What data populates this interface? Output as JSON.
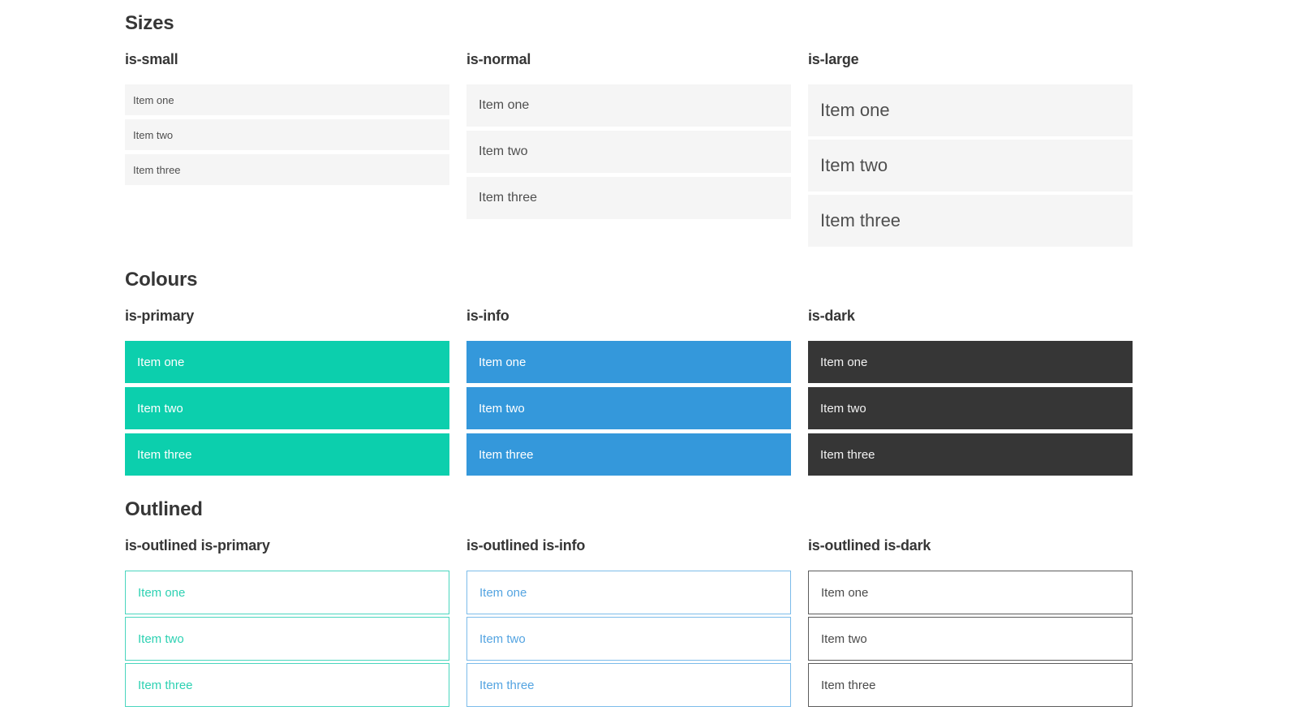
{
  "sections": [
    {
      "title": "Sizes",
      "columns": [
        {
          "label": "is-small",
          "items": [
            "Item one",
            "Item two",
            "Item three"
          ]
        },
        {
          "label": "is-normal",
          "items": [
            "Item one",
            "Item two",
            "Item three"
          ]
        },
        {
          "label": "is-large",
          "items": [
            "Item one",
            "Item two",
            "Item three"
          ]
        }
      ]
    },
    {
      "title": "Colours",
      "columns": [
        {
          "label": "is-primary",
          "items": [
            "Item one",
            "Item two",
            "Item three"
          ]
        },
        {
          "label": "is-info",
          "items": [
            "Item one",
            "Item two",
            "Item three"
          ]
        },
        {
          "label": "is-dark",
          "items": [
            "Item one",
            "Item two",
            "Item three"
          ]
        }
      ]
    },
    {
      "title": "Outlined",
      "columns": [
        {
          "label": "is-outlined is-primary",
          "items": [
            "Item one",
            "Item two",
            "Item three"
          ]
        },
        {
          "label": "is-outlined is-info",
          "items": [
            "Item one",
            "Item two",
            "Item three"
          ]
        },
        {
          "label": "is-outlined is-dark",
          "items": [
            "Item one",
            "Item two",
            "Item three"
          ]
        }
      ]
    }
  ],
  "colors": {
    "primary": "#0ccfad",
    "info": "#3498db",
    "dark": "#363636",
    "heading": "#363636",
    "item_bg": "#f5f5f5",
    "item_text": "#4f4f4f",
    "filled_text": "#ffffff",
    "dark_filled_text": "#f2f2f2",
    "outline_primary_text": "#2dd1b2",
    "outline_primary_border": "#4ad6be",
    "outline_info_text": "#54a4e1",
    "outline_info_border": "#7cbcea",
    "outline_dark_text": "#4a4a4a",
    "outline_dark_border": "#5c5c5c"
  }
}
